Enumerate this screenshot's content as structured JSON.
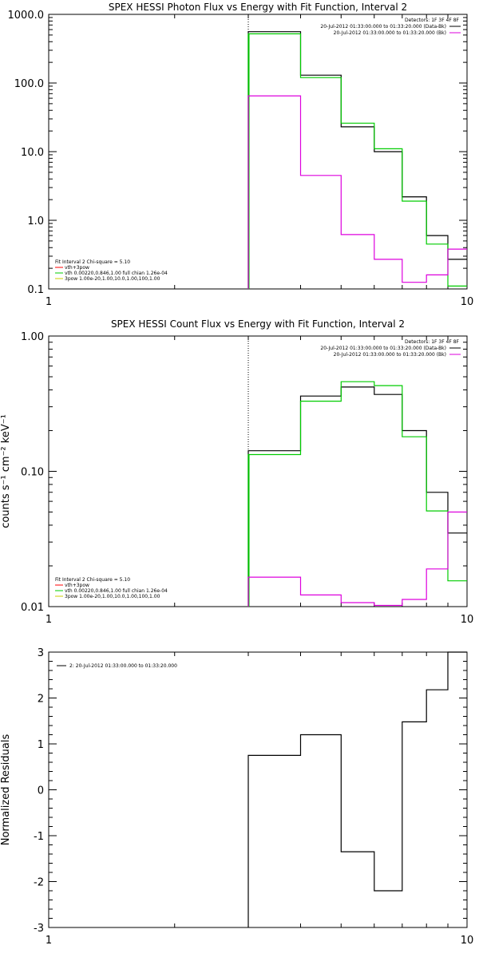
{
  "chart_data": [
    {
      "type": "line",
      "title": "SPEX HESSI Photon Flux vs Energy with Fit Function, Interval 2",
      "xscale": "log",
      "yscale": "log",
      "xlim": [
        1,
        10
      ],
      "ylim": [
        0.1,
        1000
      ],
      "xticks": [
        {
          "v": 1,
          "label": "1"
        },
        {
          "v": 10,
          "label": "10"
        }
      ],
      "yticks": [
        {
          "v": 0.1,
          "label": "0.1"
        },
        {
          "v": 1,
          "label": "1.0"
        },
        {
          "v": 10,
          "label": "10.0"
        },
        {
          "v": 100,
          "label": "100.0"
        },
        {
          "v": 1000,
          "label": "1000.0"
        }
      ],
      "vline": 3,
      "vline_color": "#00cc00",
      "legend_top": {
        "header": "Detectors: 1F 3F 4F 8F",
        "entries": [
          {
            "label": "20-Jul-2012 01:33:00.000 to 01:33:20.000 (Data-Bk)",
            "color": "#000000"
          },
          {
            "label": "20-Jul-2012 01:33:00.000 to 01:33:20.000 (Bk)",
            "color": "#dd00dd"
          }
        ]
      },
      "legend_bottom": {
        "header": "Fit Interval 2   Chi-square = 5.10",
        "entries": [
          {
            "label": "vth+3pow",
            "color": "#ff0000"
          },
          {
            "label": "vth 0.00220,0.846,1.00   full chian 1.26e-04",
            "color": "#00cc00"
          },
          {
            "label": "3pow 1.00e-20,1.00,10.0,1.00,100,1.00",
            "color": "#cccc00"
          }
        ]
      },
      "series": [
        {
          "color": "#000000",
          "edges": [
            3,
            4,
            5,
            6,
            7,
            8,
            9,
            10
          ],
          "values": [
            560,
            130,
            23,
            10,
            2.2,
            0.6,
            0.27
          ]
        },
        {
          "color": "#00cc00",
          "edges": [
            3,
            4,
            5,
            6,
            7,
            8,
            9,
            10
          ],
          "values": [
            520,
            120,
            26,
            11,
            1.9,
            0.45,
            0.11
          ]
        },
        {
          "color": "#dd00dd",
          "edges": [
            3,
            4,
            5,
            6,
            7,
            8,
            9,
            10
          ],
          "values": [
            65,
            4.5,
            0.62,
            0.27,
            0.125,
            0.16,
            0.38
          ]
        }
      ]
    },
    {
      "type": "line",
      "title": "SPEX HESSI Count Flux vs Energy with Fit Function, Interval 2",
      "ylabel": "counts s⁻¹ cm⁻² keV⁻¹",
      "xscale": "log",
      "yscale": "log",
      "xlim": [
        1,
        10
      ],
      "ylim": [
        0.01,
        1
      ],
      "xticks": [
        {
          "v": 1,
          "label": "1"
        },
        {
          "v": 10,
          "label": "10"
        }
      ],
      "yticks": [
        {
          "v": 0.01,
          "label": "0.01"
        },
        {
          "v": 0.1,
          "label": "0.10"
        },
        {
          "v": 1,
          "label": "1.00"
        }
      ],
      "vline": 3,
      "vline_color": "#00cc00",
      "legend_top": {
        "header": "Detectors: 1F 3F 4F 8F",
        "entries": [
          {
            "label": "20-Jul-2012 01:33:00.000 to 01:33:20.000 (Data-Bk)",
            "color": "#000000"
          },
          {
            "label": "20-Jul-2012 01:33:00.000 to 01:33:20.000 (Bk)",
            "color": "#dd00dd"
          }
        ]
      },
      "legend_bottom": {
        "header": "Fit Interval 2   Chi-square = 5.10",
        "entries": [
          {
            "label": "vth+3pow",
            "color": "#ff0000"
          },
          {
            "label": "vth 0.00220,0.846,1.00   full chian 1.26e-04",
            "color": "#00cc00"
          },
          {
            "label": "3pow 1.00e-20,1.00,10.0,1.00,100,1.00",
            "color": "#cccc00"
          }
        ]
      },
      "series": [
        {
          "color": "#000000",
          "edges": [
            3,
            4,
            5,
            6,
            7,
            8,
            9,
            10
          ],
          "values": [
            0.142,
            0.36,
            0.42,
            0.37,
            0.2,
            0.07,
            0.035
          ]
        },
        {
          "color": "#00cc00",
          "edges": [
            3,
            4,
            5,
            6,
            7,
            8,
            9,
            10
          ],
          "values": [
            0.133,
            0.33,
            0.46,
            0.43,
            0.18,
            0.051,
            0.0155
          ]
        },
        {
          "color": "#dd00dd",
          "edges": [
            3,
            4,
            5,
            6,
            7,
            8,
            9,
            10
          ],
          "values": [
            0.0165,
            0.0122,
            0.0107,
            0.0102,
            0.0113,
            0.019,
            0.05
          ]
        }
      ]
    },
    {
      "type": "line",
      "ylabel": "Normalized Residuals",
      "xscale": "log",
      "yscale": "linear",
      "xlim": [
        1,
        10
      ],
      "ylim": [
        -3,
        3
      ],
      "xticks": [
        {
          "v": 1,
          "label": "1"
        },
        {
          "v": 10,
          "label": "10"
        }
      ],
      "yticks": [
        {
          "v": -3,
          "label": "-3"
        },
        {
          "v": -2,
          "label": "-2"
        },
        {
          "v": -1,
          "label": "-1"
        },
        {
          "v": 0,
          "label": "0"
        },
        {
          "v": 1,
          "label": "1"
        },
        {
          "v": 2,
          "label": "2"
        },
        {
          "v": 3,
          "label": "3"
        }
      ],
      "legend_top": {
        "header": "",
        "entries": [
          {
            "label": "2: 20-Jul-2012 01:33:00.000 to 01:33:20.000",
            "color": "#000000"
          }
        ]
      },
      "series": [
        {
          "color": "#000000",
          "edges": [
            3,
            4,
            5,
            6,
            7,
            8,
            9,
            10
          ],
          "values": [
            0.75,
            1.2,
            -1.35,
            -2.2,
            1.48,
            2.18,
            3.0
          ]
        }
      ]
    }
  ]
}
